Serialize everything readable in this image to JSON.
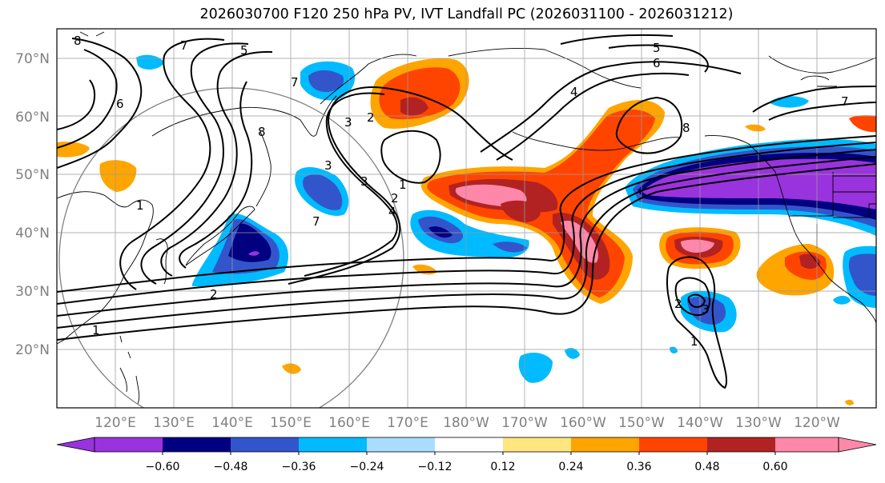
{
  "title": "2026030700 F120 250 hPa PV, IVT Landfall PC (2026031100 - 2026031212)",
  "lat_labels": [
    "70°N",
    "60°N",
    "50°N",
    "40°N",
    "30°N",
    "20°N"
  ],
  "lon_labels": [
    "120°E",
    "130°E",
    "140°E",
    "150°E",
    "160°E",
    "170°E",
    "180°W",
    "170°W",
    "160°W",
    "150°W",
    "140°W",
    "130°W",
    "120°W"
  ],
  "colorbar": {
    "colors": [
      "#9933dd",
      "#000080",
      "#3355cc",
      "#00bbff",
      "#aaddff",
      "#ffffff",
      "#ffe680",
      "#ffa500",
      "#ff4400",
      "#b22222",
      "#ff88aa"
    ],
    "ticks": [
      "−0.60",
      "−0.48",
      "−0.36",
      "−0.24",
      "−0.12",
      "0.12",
      "0.24",
      "0.36",
      "0.48",
      "0.60"
    ]
  },
  "contour_labels": [
    "8",
    "7",
    "6",
    "5",
    "4",
    "3",
    "2",
    "1",
    "5",
    "6",
    "7",
    "7",
    "8",
    "1",
    "2",
    "3",
    "4",
    "2",
    "1",
    "7",
    "3",
    "8",
    "1",
    "2",
    "3"
  ],
  "map": {
    "lat_range": [
      10,
      75
    ],
    "lon_range_east": [
      110,
      250
    ],
    "grid": true,
    "fill_variable": "IVT Landfall PC",
    "contour_variable": "250 hPa PV"
  }
}
